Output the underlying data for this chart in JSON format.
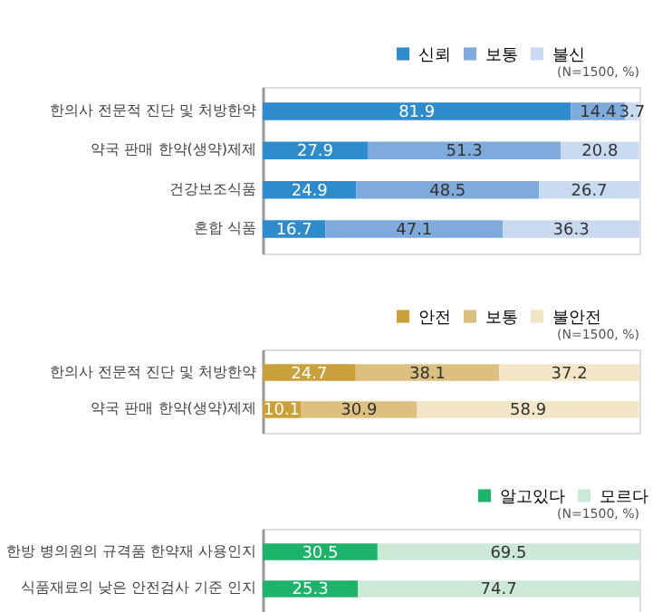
{
  "chart_data": [
    {
      "type": "bar",
      "orientation": "horizontal",
      "stacked": true,
      "data_labels": true,
      "legend": "top right",
      "annotations": [
        "(N=1500, %)"
      ],
      "categories": [
        "한의사 전문적 진단 및 처방한약",
        "약국 판매 한약(생약)제제",
        "건강보조식품",
        "혼합 식품"
      ],
      "series": [
        {
          "name": "신뢰",
          "color": "#2e8bcc",
          "values": [
            81.9,
            27.9,
            24.9,
            16.7
          ]
        },
        {
          "name": "보통",
          "color": "#7faadc",
          "values": [
            14.4,
            51.3,
            48.5,
            47.1
          ]
        },
        {
          "name": "불신",
          "color": "#c9d9ef",
          "values": [
            3.7,
            20.8,
            26.7,
            36.3
          ]
        }
      ]
    },
    {
      "type": "bar",
      "orientation": "horizontal",
      "stacked": true,
      "data_labels": true,
      "legend": "top right",
      "annotations": [
        "(N=1500, %)"
      ],
      "categories": [
        "한의사 전문적 진단 및 처방한약",
        "약국 판매 한약(생약)제제"
      ],
      "series": [
        {
          "name": "안전",
          "color": "#c9a03a",
          "values": [
            24.7,
            10.1
          ]
        },
        {
          "name": "보통",
          "color": "#dcc07f",
          "values": [
            38.1,
            30.9
          ]
        },
        {
          "name": "불안전",
          "color": "#f3e6c6",
          "values": [
            37.2,
            58.9
          ]
        }
      ]
    },
    {
      "type": "bar",
      "orientation": "horizontal",
      "stacked": true,
      "data_labels": true,
      "legend": "top right",
      "annotations": [
        "(N=1500, %)"
      ],
      "categories": [
        "한방 병의원의 규격품 한약재 사용인지",
        "식품재료의 낮은 안전검사 기준 인지"
      ],
      "series": [
        {
          "name": "알고있다",
          "color": "#1db36b",
          "values": [
            30.5,
            25.3
          ]
        },
        {
          "name": "모르다",
          "color": "#cce8d6",
          "values": [
            69.5,
            74.7
          ]
        }
      ]
    }
  ]
}
